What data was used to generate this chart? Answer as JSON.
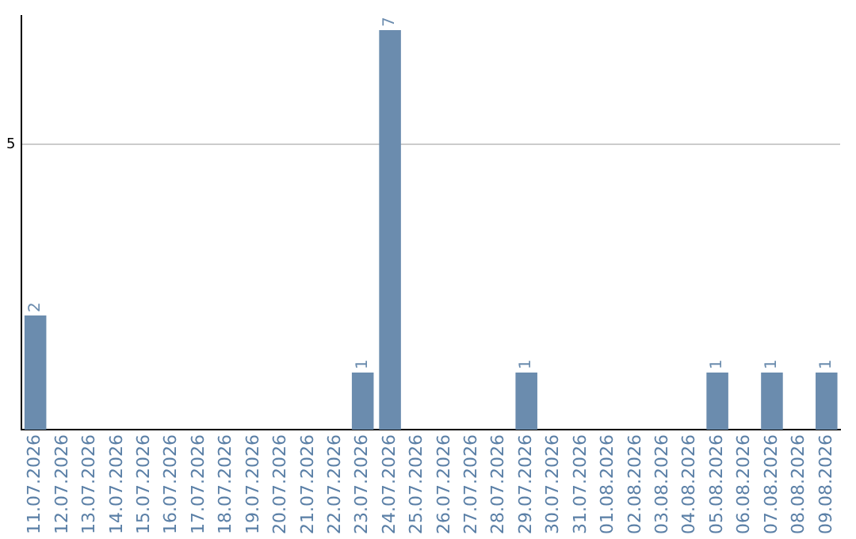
{
  "chart_data": {
    "type": "bar",
    "categories": [
      "11.07.2026",
      "12.07.2026",
      "13.07.2026",
      "14.07.2026",
      "15.07.2026",
      "16.07.2026",
      "17.07.2026",
      "18.07.2026",
      "19.07.2026",
      "20.07.2026",
      "21.07.2026",
      "22.07.2026",
      "23.07.2026",
      "24.07.2026",
      "25.07.2026",
      "26.07.2026",
      "27.07.2026",
      "28.07.2026",
      "29.07.2026",
      "30.07.2026",
      "31.07.2026",
      "01.08.2026",
      "02.08.2026",
      "03.08.2026",
      "04.08.2026",
      "05.08.2026",
      "06.08.2026",
      "07.08.2026",
      "08.08.2026",
      "09.08.2026"
    ],
    "values": [
      2,
      0,
      0,
      0,
      0,
      0,
      0,
      0,
      0,
      0,
      0,
      0,
      1,
      7,
      0,
      0,
      0,
      0,
      1,
      0,
      0,
      0,
      0,
      0,
      0,
      1,
      0,
      1,
      0,
      1
    ],
    "value_labels": [
      "2",
      null,
      null,
      null,
      null,
      null,
      null,
      null,
      null,
      null,
      null,
      null,
      "1",
      "7",
      null,
      null,
      null,
      null,
      "1",
      null,
      null,
      null,
      null,
      null,
      null,
      "1",
      null,
      "1",
      null,
      "1"
    ],
    "color": "#6b8cae",
    "ylim": [
      0,
      7.25
    ],
    "yticks": [
      5
    ],
    "grid": "y",
    "legend": false
  }
}
